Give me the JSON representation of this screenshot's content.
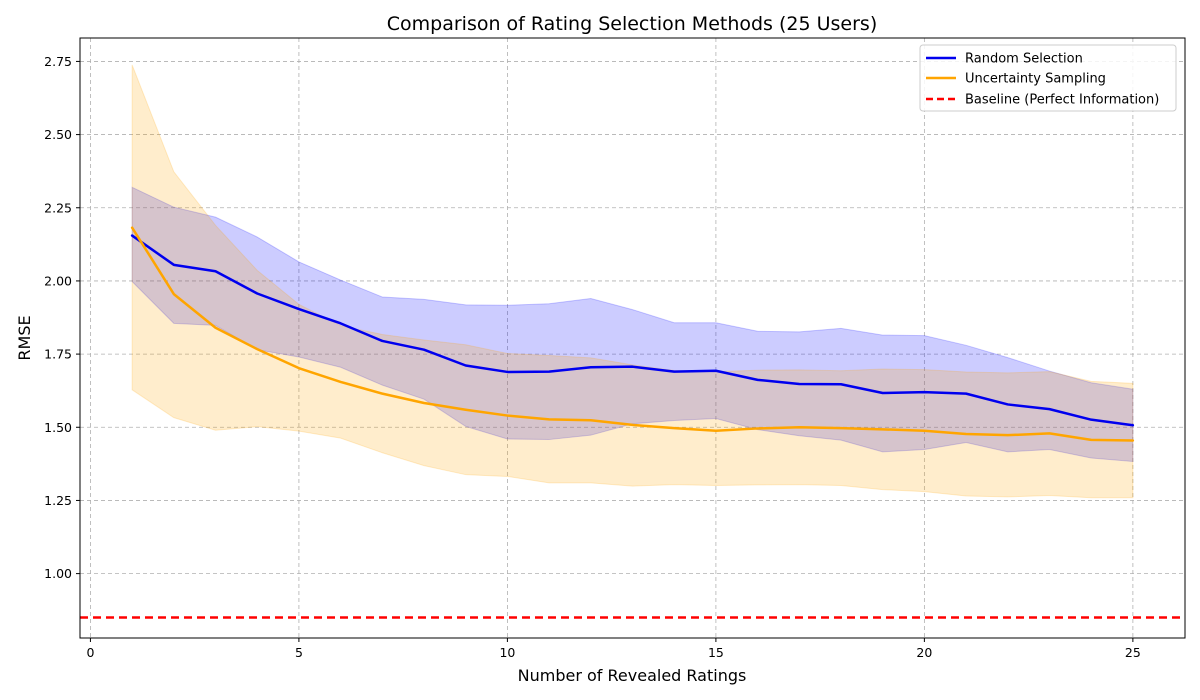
{
  "chart_data": {
    "type": "line",
    "title": "Comparison of Rating Selection Methods (25 Users)",
    "xlabel": "Number of Revealed Ratings",
    "ylabel": "RMSE",
    "xlim": [
      -0.25,
      26.25
    ],
    "ylim": [
      0.78,
      2.83
    ],
    "xticks": [
      0,
      5,
      10,
      15,
      20,
      25
    ],
    "yticks": [
      1.0,
      1.25,
      1.5,
      1.75,
      2.0,
      2.25,
      2.5,
      2.75
    ],
    "ytick_labels": [
      "1.00",
      "1.25",
      "1.50",
      "1.75",
      "2.00",
      "2.25",
      "2.50",
      "2.75"
    ],
    "grid": true,
    "legend_position": "top-right",
    "x": [
      1,
      2,
      3,
      4,
      5,
      6,
      7,
      8,
      9,
      10,
      11,
      12,
      13,
      14,
      15,
      16,
      17,
      18,
      19,
      20,
      21,
      22,
      23,
      24,
      25
    ],
    "series": [
      {
        "name": "Random Selection",
        "color": "#0000ee",
        "band_color": "#0000ff",
        "mean": [
          2.155,
          2.055,
          2.033,
          1.957,
          1.904,
          1.855,
          1.795,
          1.765,
          1.711,
          1.689,
          1.69,
          1.705,
          1.707,
          1.69,
          1.693,
          1.662,
          1.648,
          1.647,
          1.617,
          1.62,
          1.615,
          1.578,
          1.562,
          1.526,
          1.507
        ],
        "upper": [
          2.32,
          2.252,
          2.218,
          2.15,
          2.065,
          2.003,
          1.945,
          1.937,
          1.918,
          1.917,
          1.922,
          1.94,
          1.902,
          1.857,
          1.857,
          1.828,
          1.826,
          1.838,
          1.815,
          1.813,
          1.78,
          1.738,
          1.692,
          1.652,
          1.63
        ],
        "lower": [
          1.998,
          1.855,
          1.848,
          1.765,
          1.74,
          1.705,
          1.644,
          1.596,
          1.503,
          1.46,
          1.458,
          1.473,
          1.512,
          1.523,
          1.53,
          1.492,
          1.471,
          1.456,
          1.416,
          1.424,
          1.448,
          1.416,
          1.424,
          1.395,
          1.383
        ]
      },
      {
        "name": "Uncertainty Sampling",
        "color": "#ffa500",
        "band_color": "#ffa500",
        "mean": [
          2.182,
          1.955,
          1.84,
          1.767,
          1.702,
          1.655,
          1.615,
          1.583,
          1.56,
          1.54,
          1.527,
          1.524,
          1.508,
          1.497,
          1.488,
          1.496,
          1.5,
          1.497,
          1.493,
          1.488,
          1.477,
          1.473,
          1.479,
          1.457,
          1.455
        ],
        "upper": [
          2.738,
          2.373,
          2.19,
          2.036,
          1.92,
          1.847,
          1.817,
          1.798,
          1.782,
          1.752,
          1.745,
          1.737,
          1.713,
          1.694,
          1.69,
          1.695,
          1.696,
          1.693,
          1.699,
          1.697,
          1.689,
          1.686,
          1.69,
          1.657,
          1.65
        ],
        "lower": [
          1.628,
          1.533,
          1.49,
          1.502,
          1.487,
          1.463,
          1.413,
          1.369,
          1.338,
          1.332,
          1.31,
          1.31,
          1.299,
          1.304,
          1.301,
          1.303,
          1.304,
          1.301,
          1.287,
          1.28,
          1.265,
          1.262,
          1.267,
          1.259,
          1.259
        ]
      }
    ],
    "baseline": {
      "name": "Baseline (Perfect Information)",
      "color": "#ff0000",
      "y": 0.85
    },
    "legend": [
      "Random Selection",
      "Uncertainty Sampling",
      "Baseline (Perfect Information)"
    ]
  }
}
